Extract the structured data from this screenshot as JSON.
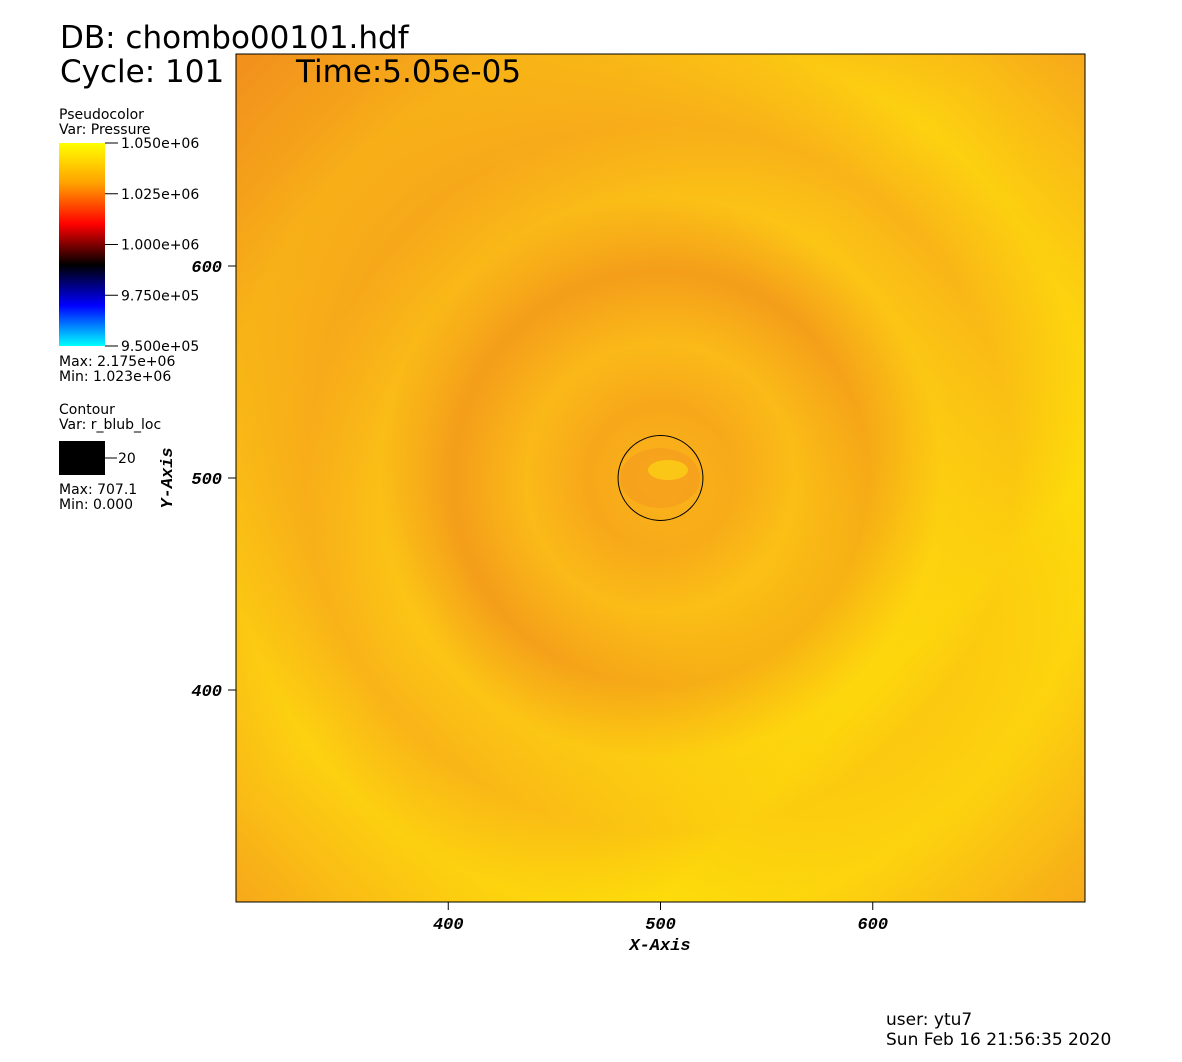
{
  "chart_data": {
    "type": "pseudocolor",
    "db": "DB: chombo00101.hdf",
    "cycle": "Cycle: 101",
    "time": "Time:5.05e-05",
    "xlabel": "X-Axis",
    "ylabel": "Y-Axis",
    "xlim": [
      300,
      700
    ],
    "ylim": [
      300,
      700
    ],
    "xticks": [
      400,
      500,
      600
    ],
    "yticks": [
      400,
      500,
      600
    ],
    "colorbar": {
      "title": "Pseudocolor",
      "var": "Var: Pressure",
      "lim": [
        950000,
        1050000
      ],
      "ticks": [
        {
          "value": 1050000,
          "label": "1.050e+06"
        },
        {
          "value": 1025000,
          "label": "1.025e+06"
        },
        {
          "value": 1000000,
          "label": "1.000e+06"
        },
        {
          "value": 975000,
          "label": "9.750e+05"
        },
        {
          "value": 950000,
          "label": "9.500e+05"
        }
      ],
      "colormap": [
        "#00ffff",
        "#0000ff",
        "#000000",
        "#ff0000",
        "#ffa000",
        "#ffff00"
      ],
      "max": "Max: 2.175e+06",
      "min": "Min: 1.023e+06"
    },
    "contour": {
      "title": "Contour",
      "var": "Var: r_blub_loc",
      "levels": [
        20
      ],
      "color": "#000000",
      "max": "Max: 707.1",
      "min": "Min: 0.000"
    },
    "user": "user: ytu7",
    "date": "Sun Feb 16 21:56:35 2020"
  }
}
